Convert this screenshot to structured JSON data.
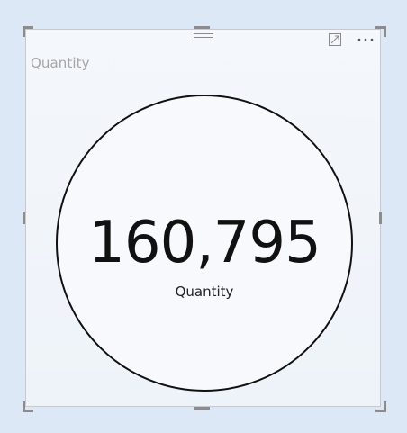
{
  "visual": {
    "title": "Quantity",
    "value": "160,795",
    "label": "Quantity"
  },
  "icons": {
    "drag": "drag-handle-icon",
    "focus": "focus-mode-icon",
    "more": "more-options-icon"
  },
  "colors": {
    "background": "#dce8f5",
    "frame": "#f4f7fb",
    "circle_stroke": "#111111",
    "handles": "#8c8c8c"
  }
}
